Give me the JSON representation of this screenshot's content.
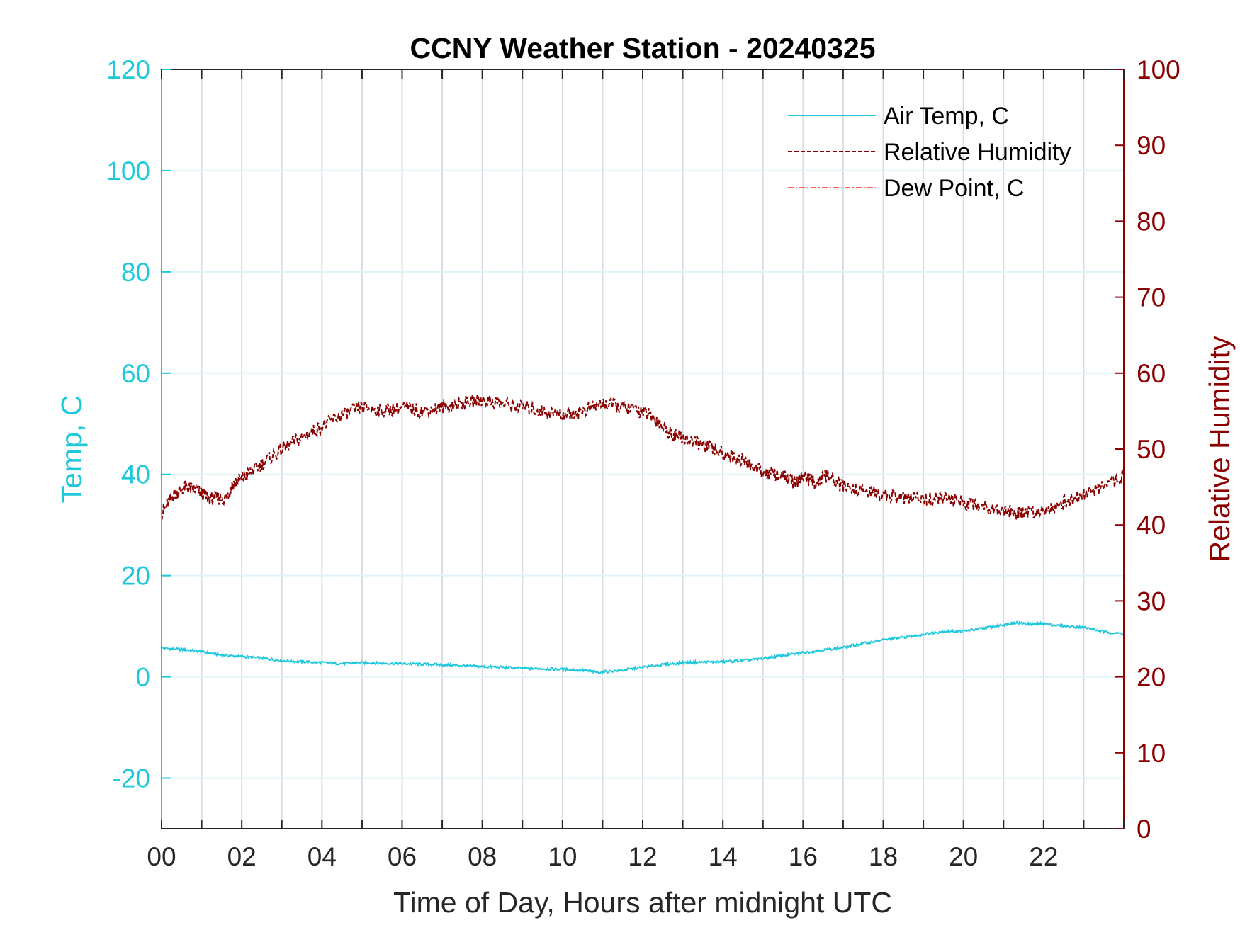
{
  "chart_data": {
    "type": "line",
    "title": "CCNY Weather Station - 20240325",
    "xlabel": "Time of Day, Hours after midnight UTC",
    "ylabel_left": "Temp, C",
    "ylabel_right": "Relative Humidity",
    "xlim": [
      0,
      24
    ],
    "ylim_left": [
      -30,
      120
    ],
    "ylim_right": [
      0,
      100
    ],
    "x_tick_labels": [
      "00",
      "02",
      "04",
      "06",
      "08",
      "10",
      "12",
      "14",
      "16",
      "18",
      "20",
      "22"
    ],
    "x_tick_values": [
      0,
      2,
      4,
      6,
      8,
      10,
      12,
      14,
      16,
      18,
      20,
      22
    ],
    "y_left_ticks": [
      -20,
      0,
      20,
      40,
      60,
      80,
      100,
      120
    ],
    "y_right_ticks": [
      0,
      10,
      20,
      30,
      40,
      50,
      60,
      70,
      80,
      90,
      100
    ],
    "grid": true,
    "legend_position": "top-right",
    "colors": {
      "air_temp": "#1ec8dc",
      "relative_humidity": "#8b0000",
      "dew_point": "#ff6347"
    },
    "series": [
      {
        "name": "Air Temp, C",
        "axis": "left",
        "style": "solid",
        "x": [
          0,
          0.5,
          1,
          1.5,
          2,
          2.5,
          3,
          3.5,
          4,
          4.5,
          5,
          5.5,
          6,
          6.5,
          7,
          7.5,
          8,
          8.5,
          9,
          9.5,
          10,
          10.5,
          10.9,
          11.5,
          12,
          12.5,
          13,
          13.5,
          14,
          14.5,
          15,
          15.5,
          16,
          16.5,
          17,
          17.5,
          18,
          18.5,
          19,
          19.5,
          20,
          20.5,
          21,
          21.3,
          21.7,
          22,
          22.5,
          23,
          23.5,
          24
        ],
        "y": [
          5.7,
          5.4,
          5.0,
          4.3,
          4.0,
          3.7,
          3.2,
          3.0,
          2.8,
          2.6,
          2.8,
          2.7,
          2.6,
          2.5,
          2.4,
          2.2,
          2.0,
          1.9,
          1.7,
          1.6,
          1.5,
          1.3,
          0.9,
          1.3,
          1.9,
          2.4,
          2.8,
          2.9,
          3.0,
          3.2,
          3.6,
          4.2,
          4.8,
          5.3,
          5.8,
          6.6,
          7.3,
          7.8,
          8.4,
          9.0,
          9.0,
          9.6,
          10.3,
          10.7,
          10.4,
          10.5,
          10.0,
          9.8,
          8.9,
          8.5
        ]
      },
      {
        "name": "Relative Humidity",
        "axis": "right",
        "style": "dashed",
        "x": [
          0,
          0.3,
          0.6,
          0.9,
          1.2,
          1.6,
          1.8,
          2.1,
          2.5,
          3.0,
          3.5,
          4.0,
          4.5,
          5.0,
          5.5,
          6.0,
          6.5,
          7.0,
          7.5,
          8.0,
          8.5,
          9.0,
          9.5,
          10.0,
          10.5,
          11.0,
          11.5,
          12.0,
          12.3,
          12.7,
          13.0,
          13.5,
          14.0,
          14.5,
          15.0,
          15.5,
          15.8,
          16.0,
          16.3,
          16.6,
          17.0,
          17.5,
          18.0,
          18.5,
          19.0,
          19.5,
          20.0,
          20.5,
          21.0,
          21.3,
          21.5,
          22.0,
          22.5,
          23.0,
          23.5,
          24.0
        ],
        "y": [
          41.5,
          44.0,
          45.0,
          44.5,
          43.5,
          43.5,
          45.5,
          46.5,
          48.0,
          50.0,
          51.5,
          53.0,
          54.5,
          55.5,
          55.0,
          55.5,
          55.0,
          55.5,
          56.0,
          56.5,
          56.0,
          55.5,
          55.0,
          54.5,
          55.0,
          56.0,
          55.5,
          55.0,
          54.0,
          52.0,
          51.5,
          50.5,
          49.5,
          48.5,
          47.0,
          46.5,
          45.5,
          46.5,
          45.5,
          46.5,
          45.0,
          44.5,
          44.0,
          43.5,
          43.5,
          43.5,
          43.0,
          42.5,
          42.0,
          41.5,
          41.5,
          42.0,
          43.0,
          44.0,
          45.0,
          46.5
        ]
      },
      {
        "name": "Dew Point, C",
        "axis": "left",
        "style": "dashdot",
        "x": [],
        "y": []
      }
    ]
  }
}
